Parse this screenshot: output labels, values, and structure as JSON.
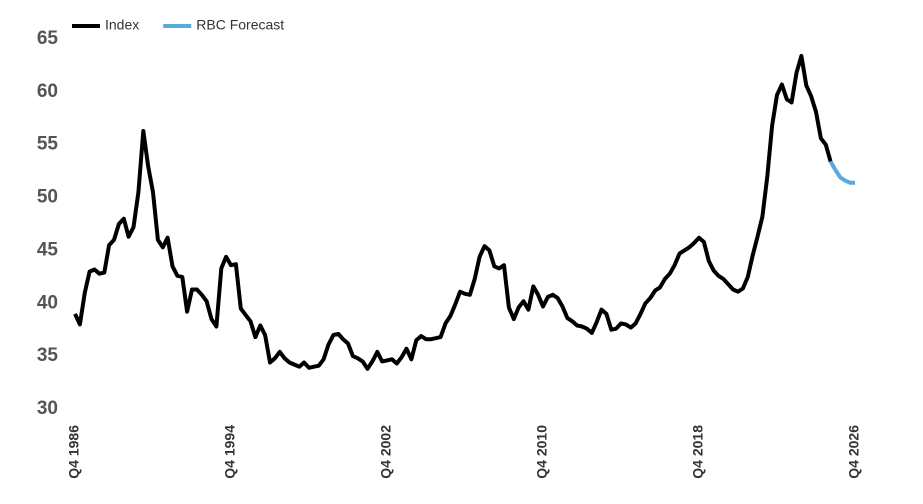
{
  "chart_data": {
    "type": "line",
    "categories": [
      "Q4 1986",
      null,
      null,
      null,
      null,
      null,
      null,
      null,
      null,
      null,
      null,
      null,
      null,
      null,
      null,
      null,
      null,
      null,
      null,
      null,
      null,
      null,
      null,
      null,
      null,
      null,
      null,
      null,
      null,
      null,
      null,
      null,
      "Q4 1994",
      null,
      null,
      null,
      null,
      null,
      null,
      null,
      null,
      null,
      null,
      null,
      null,
      null,
      null,
      null,
      null,
      null,
      null,
      null,
      null,
      null,
      null,
      null,
      null,
      null,
      null,
      null,
      null,
      null,
      null,
      null,
      "Q4 2002",
      null,
      null,
      null,
      null,
      null,
      null,
      null,
      null,
      null,
      null,
      null,
      null,
      null,
      null,
      null,
      null,
      null,
      null,
      null,
      null,
      null,
      null,
      null,
      null,
      null,
      null,
      null,
      null,
      null,
      null,
      null,
      "Q4 2010",
      null,
      null,
      null,
      null,
      null,
      null,
      null,
      null,
      null,
      null,
      null,
      null,
      null,
      null,
      null,
      null,
      null,
      null,
      null,
      null,
      null,
      null,
      null,
      null,
      null,
      null,
      null,
      null,
      null,
      null,
      null,
      "Q4 2018",
      null,
      null,
      null,
      null,
      null,
      null,
      null,
      null,
      null,
      null,
      null,
      null,
      null,
      null,
      null,
      null,
      null,
      null,
      null,
      null,
      null,
      null,
      null,
      null,
      null,
      null,
      null,
      null,
      null,
      null,
      null,
      "Q4 2026"
    ],
    "series": [
      {
        "name": "Index",
        "color": "#000000",
        "values": [
          39,
          38,
          41,
          43,
          43.2,
          42.8,
          42.9,
          45.5,
          46,
          47.5,
          48,
          46.3,
          47.2,
          50.5,
          56.3,
          53,
          50.5,
          46,
          45.3,
          46.2,
          43.5,
          42.6,
          42.5,
          39.2,
          41.3,
          41.3,
          40.8,
          40.2,
          38.5,
          37.8,
          43.3,
          44.4,
          43.6,
          43.7,
          39.5,
          38.9,
          38.3,
          36.8,
          37.9,
          37,
          34.4,
          34.8,
          35.4,
          34.8,
          34.4,
          34.2,
          34,
          34.4,
          33.9,
          34,
          34.1,
          34.7,
          36.1,
          37,
          37.1,
          36.6,
          36.2,
          35,
          34.8,
          34.5,
          33.8,
          34.5,
          35.4,
          34.5,
          34.6,
          34.7,
          34.3,
          34.9,
          35.7,
          34.7,
          36.5,
          36.9,
          36.6,
          36.6,
          36.7,
          36.8,
          38.1,
          38.8,
          39.9,
          41.1,
          40.9,
          40.8,
          42.3,
          44.4,
          45.4,
          45,
          43.5,
          43.3,
          43.6,
          39.6,
          38.5,
          39.6,
          40.2,
          39.4,
          41.6,
          40.8,
          39.7,
          40.6,
          40.8,
          40.5,
          39.7,
          38.6,
          38.3,
          37.9,
          37.8,
          37.6,
          37.2,
          38.2,
          39.4,
          39,
          37.5,
          37.6,
          38.1,
          38,
          37.7,
          38.1,
          39,
          40,
          40.5,
          41.2,
          41.5,
          42.3,
          42.8,
          43.6,
          44.7,
          45,
          45.3,
          45.7,
          46.2,
          45.8,
          44,
          43.1,
          42.6,
          42.3,
          41.8,
          41.3,
          41.1,
          41.4,
          42.5,
          44.5,
          46.3,
          48.2,
          52,
          56.8,
          59.7,
          60.7,
          59.3,
          59,
          61.8,
          63.4,
          60.6,
          59.6,
          58.1,
          55.6,
          55,
          53.4,
          null,
          null,
          null,
          null,
          null
        ]
      },
      {
        "name": "RBC Forecast",
        "color": "#5aa9dc",
        "values": [
          null,
          null,
          null,
          null,
          null,
          null,
          null,
          null,
          null,
          null,
          null,
          null,
          null,
          null,
          null,
          null,
          null,
          null,
          null,
          null,
          null,
          null,
          null,
          null,
          null,
          null,
          null,
          null,
          null,
          null,
          null,
          null,
          null,
          null,
          null,
          null,
          null,
          null,
          null,
          null,
          null,
          null,
          null,
          null,
          null,
          null,
          null,
          null,
          null,
          null,
          null,
          null,
          null,
          null,
          null,
          null,
          null,
          null,
          null,
          null,
          null,
          null,
          null,
          null,
          null,
          null,
          null,
          null,
          null,
          null,
          null,
          null,
          null,
          null,
          null,
          null,
          null,
          null,
          null,
          null,
          null,
          null,
          null,
          null,
          null,
          null,
          null,
          null,
          null,
          null,
          null,
          null,
          null,
          null,
          null,
          null,
          null,
          null,
          null,
          null,
          null,
          null,
          null,
          null,
          null,
          null,
          null,
          null,
          null,
          null,
          null,
          null,
          null,
          null,
          null,
          null,
          null,
          null,
          null,
          null,
          null,
          null,
          null,
          null,
          null,
          null,
          null,
          null,
          null,
          null,
          null,
          null,
          null,
          null,
          null,
          null,
          null,
          null,
          null,
          null,
          null,
          null,
          null,
          null,
          null,
          null,
          null,
          null,
          null,
          null,
          null,
          null,
          null,
          null,
          null,
          53.4,
          52.6,
          51.9,
          51.6,
          51.4,
          51.4
        ]
      }
    ],
    "ylim": [
      30,
      65
    ],
    "yticks": [
      30,
      35,
      40,
      45,
      50,
      55,
      60,
      65
    ],
    "grid": false,
    "legend": "top-left"
  }
}
